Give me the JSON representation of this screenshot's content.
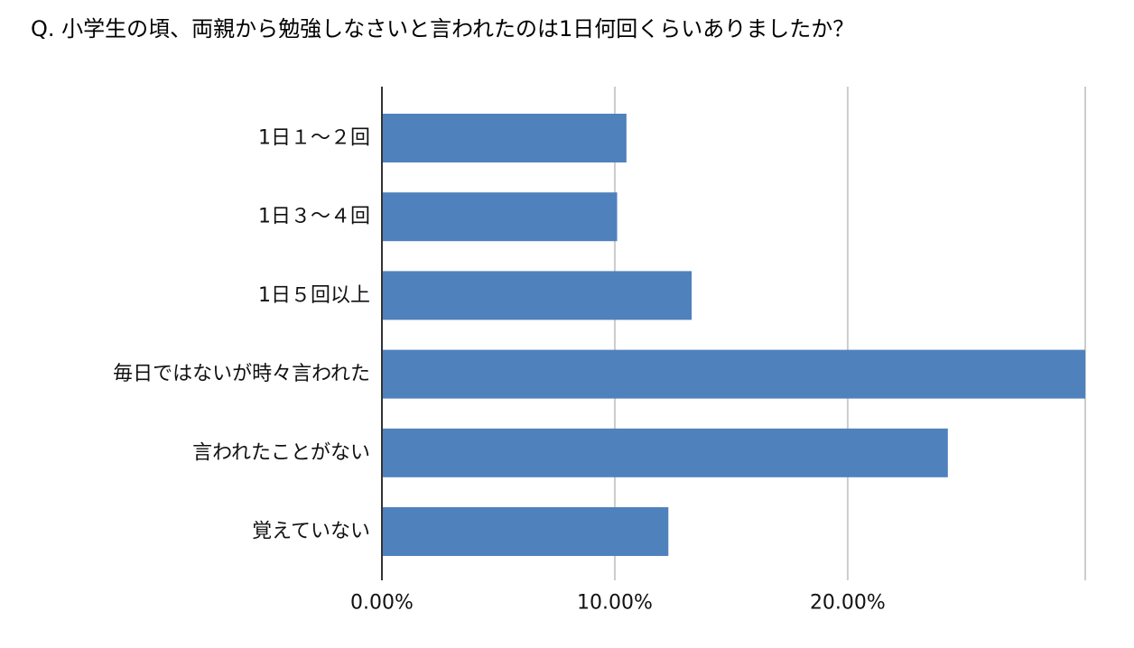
{
  "chart_data": {
    "type": "bar",
    "orientation": "horizontal",
    "title": "Q. 小学生の頃、両親から勉強しなさいと言われたのは1日何回くらいありましたか？",
    "categories": [
      "1日１～２回",
      "1日３～４回",
      "1日５回以上",
      "毎日ではないが時々言われた",
      "言われたことがない",
      "覚えていない"
    ],
    "values": [
      10.5,
      10.1,
      13.3,
      30.2,
      24.3,
      12.3
    ],
    "unit": "%",
    "xlim": [
      0,
      30.2
    ],
    "xticks": [
      0,
      10,
      20,
      30.2
    ],
    "xtick_labels": [
      "0.00%",
      "10.00%",
      "20.00%",
      ""
    ],
    "grid": true,
    "legend": "none",
    "colors": {
      "bar": "#4f81bd"
    }
  }
}
